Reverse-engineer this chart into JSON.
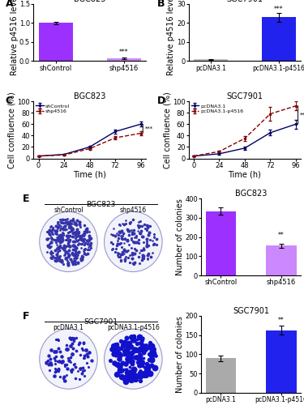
{
  "panel_A": {
    "title": "BGC823",
    "categories": [
      "shControl",
      "shp4516"
    ],
    "values": [
      1.0,
      0.08
    ],
    "errors": [
      0.04,
      0.025
    ],
    "colors": [
      "#9B30FF",
      "#CC88FF"
    ],
    "ylim": [
      0,
      1.5
    ],
    "yticks": [
      0.0,
      0.5,
      1.0,
      1.5
    ],
    "ylabel": "Relative p4516 levels",
    "significance": "***",
    "sig_y": 0.13
  },
  "panel_B": {
    "title": "SGC7901",
    "categories": [
      "pcDNA3.1",
      "pcDNA3.1-p4516"
    ],
    "values": [
      1.0,
      23.0
    ],
    "errors": [
      0.2,
      2.2
    ],
    "colors": [
      "#BBBBBB",
      "#2222EE"
    ],
    "ylim": [
      0,
      30
    ],
    "yticks": [
      0,
      10,
      20,
      30
    ],
    "ylabel": "Relative p4516 levels",
    "significance": "***",
    "sig_y": 25.5
  },
  "panel_C": {
    "title": "BGC823",
    "xlabel": "Time (h)",
    "ylabel": "Cell confluence (%)",
    "xticks": [
      0,
      24,
      48,
      72,
      96
    ],
    "ylim": [
      0,
      100
    ],
    "yticks": [
      0,
      20,
      40,
      60,
      80,
      100
    ],
    "line1_label": "shControl",
    "line1_color": "#000066",
    "line1_style": "-",
    "line1_x": [
      0,
      24,
      48,
      72,
      96
    ],
    "line1_y": [
      4,
      7,
      20,
      47,
      60
    ],
    "line1_err": [
      0.5,
      1,
      2,
      3,
      4
    ],
    "line2_label": "shp4516",
    "line2_color": "#880000",
    "line2_style": "--",
    "line2_x": [
      0,
      24,
      48,
      72,
      96
    ],
    "line2_y": [
      4,
      6,
      17,
      36,
      44
    ],
    "line2_err": [
      0.5,
      1,
      2,
      3,
      3
    ],
    "significance": "***"
  },
  "panel_D": {
    "title": "SGC7901",
    "xlabel": "Time (h)",
    "ylabel": "Cell confluence (%)",
    "xticks": [
      0,
      24,
      48,
      72,
      96
    ],
    "ylim": [
      0,
      100
    ],
    "yticks": [
      0,
      20,
      40,
      60,
      80,
      100
    ],
    "line1_label": "pcDNA3.1",
    "line1_color": "#000066",
    "line1_style": "-",
    "line1_x": [
      0,
      24,
      48,
      72,
      96
    ],
    "line1_y": [
      4,
      8,
      18,
      45,
      60
    ],
    "line1_err": [
      0.5,
      2,
      3,
      5,
      8
    ],
    "line2_label": "pcDNA3.1-p4516",
    "line2_color": "#880000",
    "line2_style": "--",
    "line2_x": [
      0,
      24,
      48,
      72,
      96
    ],
    "line2_y": [
      4,
      12,
      35,
      78,
      92
    ],
    "line2_err": [
      0.5,
      2,
      4,
      12,
      8
    ],
    "significance": "***"
  },
  "panel_E_bar": {
    "title": "BGC823",
    "categories": [
      "shControl",
      "shp4516"
    ],
    "values": [
      335,
      155
    ],
    "errors": [
      18,
      12
    ],
    "colors": [
      "#9B30FF",
      "#CC88FF"
    ],
    "ylim": [
      0,
      400
    ],
    "yticks": [
      0,
      100,
      200,
      300,
      400
    ],
    "ylabel": "Number of colonies",
    "significance": "**",
    "sig_y": 190
  },
  "panel_F_bar": {
    "title": "SGC7901",
    "categories": [
      "pcDNA3.1",
      "pcDNA3.1-p4516"
    ],
    "values": [
      90,
      163
    ],
    "errors": [
      7,
      11
    ],
    "colors": [
      "#AAAAAA",
      "#2222EE"
    ],
    "ylim": [
      0,
      200
    ],
    "yticks": [
      0,
      50,
      100,
      150,
      200
    ],
    "ylabel": "Number of colonies",
    "significance": "**",
    "sig_y": 178
  },
  "bg_color": "#FFFFFF",
  "label_fontsize": 7,
  "title_fontsize": 7,
  "tick_fontsize": 6,
  "panel_label_fontsize": 9
}
